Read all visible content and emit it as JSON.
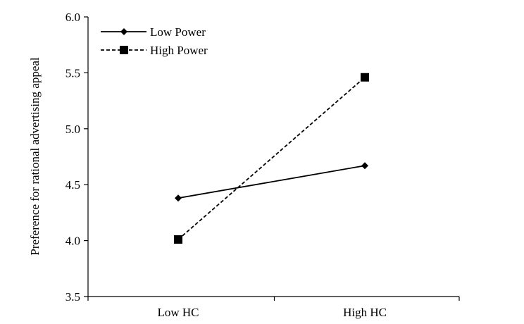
{
  "chart_data": {
    "type": "line",
    "title": "",
    "xlabel": "",
    "ylabel": "Preference for rational advertising appeal",
    "categories": [
      "Low HC",
      "High HC"
    ],
    "ylim": [
      3.5,
      6.0
    ],
    "yticks": [
      "3.5",
      "4.0",
      "4.5",
      "5.0",
      "5.5",
      "6.0"
    ],
    "grid": false,
    "legend_position": "top-left",
    "series": [
      {
        "name": "Low Power",
        "values": [
          4.38,
          4.67
        ],
        "line": "solid",
        "marker": "diamond"
      },
      {
        "name": "High Power",
        "values": [
          4.01,
          5.46
        ],
        "line": "dashed",
        "marker": "square"
      }
    ]
  }
}
